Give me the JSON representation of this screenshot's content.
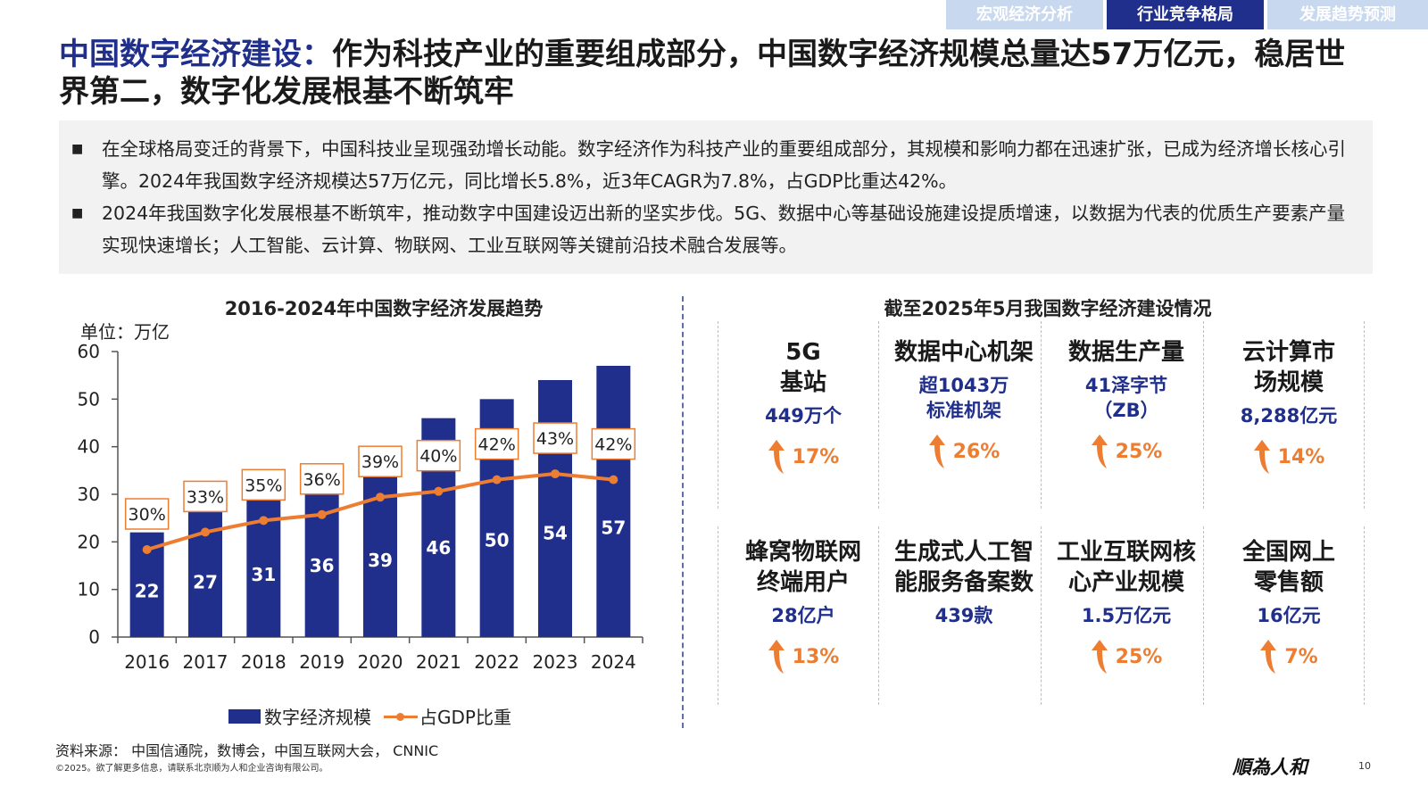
{
  "nav": {
    "tabs": [
      {
        "label": "宏观经济分析",
        "active": false
      },
      {
        "label": "行业竞争格局",
        "active": true
      },
      {
        "label": "发展趋势预测",
        "active": false
      }
    ]
  },
  "title": {
    "accent": "中国数字经济建设：",
    "rest": "作为科技产业的重要组成部分，中国数字经济规模总量达57万亿元，稳居世界第二，数字化发展根基不断筑牢"
  },
  "summary": {
    "bullets": [
      "在全球格局变迁的背景下，中国科技业呈现强劲增长动能。数字经济作为科技产业的重要组成部分，其规模和影响力都在迅速扩张，已成为经济增长核心引擎。2024年我国数字经济规模达57万亿元，同比增长5.8%，近3年CAGR为7.8%，占GDP比重达42%。",
      "2024年我国数字化发展根基不断筑牢，推动数字中国建设迈出新的坚实步伐。5G、数据中心等基础设施建设提质增速，以数据为代表的优质生产要素产量实现快速增长；人工智能、云计算、物联网、工业互联网等关键前沿技术融合发展等。"
    ]
  },
  "chart_data": {
    "type": "bar",
    "title": "2016-2024年中国数字经济发展趋势",
    "unit_label": "单位：万亿",
    "categories": [
      "2016",
      "2017",
      "2018",
      "2019",
      "2020",
      "2021",
      "2022",
      "2023",
      "2024"
    ],
    "series": [
      {
        "name": "数字经济规模",
        "type": "bar",
        "color": "#1f2f8b",
        "values": [
          22,
          27,
          31,
          36,
          39,
          46,
          50,
          54,
          57
        ],
        "labels": [
          "22",
          "27",
          "31",
          "36",
          "39",
          "46",
          "50",
          "54",
          "57"
        ]
      },
      {
        "name": "占GDP比重",
        "type": "line",
        "color": "#ed7d31",
        "values": [
          30,
          33,
          35,
          36,
          39,
          40,
          42,
          43,
          42
        ],
        "labels": [
          "30%",
          "33%",
          "35%",
          "36%",
          "39%",
          "40%",
          "42%",
          "43%",
          "42%"
        ]
      }
    ],
    "ylim": [
      0,
      60
    ],
    "yticks": [
      "0",
      "10",
      "20",
      "30",
      "40",
      "50",
      "60"
    ],
    "grid": false,
    "legend": "bottom"
  },
  "right": {
    "title": "截至2025年5月我国数字经济建设情况",
    "cards": [
      {
        "label": "5G\n基站",
        "value": "449万个",
        "growth": "17%"
      },
      {
        "label": "数据中心机架",
        "value": "超1043万\n标准机架",
        "growth": "26%"
      },
      {
        "label": "数据生产量",
        "value": "41泽字节\n（ZB）",
        "growth": "25%"
      },
      {
        "label": "云计算市\n场规模",
        "value": "8,288亿元",
        "growth": "14%"
      },
      {
        "label": "蜂窝物联网\n终端用户",
        "value": "28亿户",
        "growth": "13%"
      },
      {
        "label": "生成式人工智\n能服务备案数",
        "value": "439款",
        "growth": ""
      },
      {
        "label": "工业互联网核\n心产业规模",
        "value": "1.5万亿元",
        "growth": "25%"
      },
      {
        "label": "全国网上\n零售额",
        "value": "16亿元",
        "growth": "7%"
      }
    ],
    "arrow_color": "#ed7d31"
  },
  "footer": {
    "source": "资料来源： 中国信通院，数博会，中国互联网大会， CNNIC",
    "copyright": "©2025。欲了解更多信息，请联系北京顺为人和企业咨询有限公司。",
    "logo_text": "顺為人和",
    "page": "10"
  }
}
